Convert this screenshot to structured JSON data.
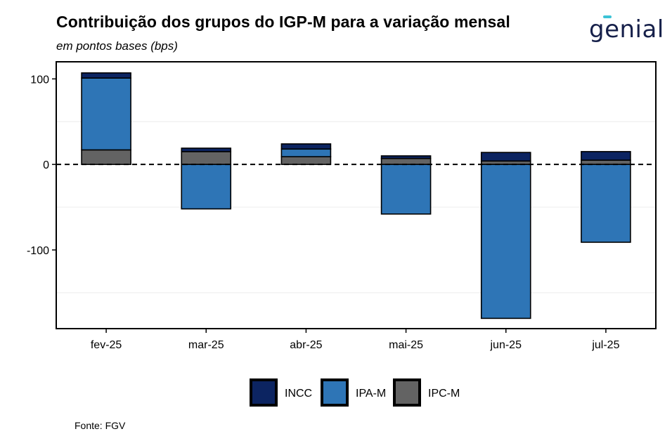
{
  "header": {
    "title": "Contribuição dos grupos do IGP-M para a variação mensal",
    "subtitle": "em pontos bases (bps)",
    "logo_text": "genial"
  },
  "source": "Fonte: FGV",
  "colors": {
    "INCC": "#0c2461",
    "IPA-M": "#2e75b6",
    "IPC-M": "#636363"
  },
  "chart_data": {
    "type": "bar",
    "stacked": true,
    "categories": [
      "fev-25",
      "mar-25",
      "abr-25",
      "mai-25",
      "jun-25",
      "jul-25"
    ],
    "series": [
      {
        "name": "IPC-M",
        "values": [
          17,
          15,
          9,
          7,
          4,
          5
        ]
      },
      {
        "name": "IPA-M",
        "values": [
          84,
          -52,
          9,
          -58,
          -180,
          -91
        ]
      },
      {
        "name": "INCC",
        "values": [
          6,
          4,
          6,
          3,
          10,
          10
        ]
      }
    ],
    "y_ticks": [
      100,
      0,
      -100
    ],
    "ylim": [
      -192,
      120
    ],
    "zero_line": "dashed",
    "legend": {
      "position": "bottom",
      "entries": [
        "INCC",
        "IPA-M",
        "IPC-M"
      ]
    }
  }
}
